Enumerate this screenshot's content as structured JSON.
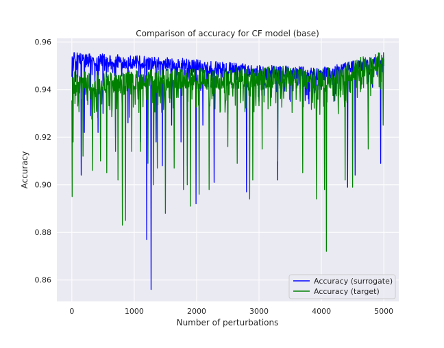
{
  "chart_data": {
    "type": "line",
    "title": "Comparison of accuracy for CF model (base)",
    "xlabel": "Number of perturbations",
    "ylabel": "Accuracy",
    "xlim": [
      -240,
      5240
    ],
    "ylim": [
      0.851,
      0.9615
    ],
    "xticks": [
      0,
      1000,
      2000,
      3000,
      4000,
      5000
    ],
    "xtick_labels": [
      "0",
      "1000",
      "2000",
      "3000",
      "4000",
      "5000"
    ],
    "yticks": [
      0.86,
      0.88,
      0.9,
      0.92,
      0.94,
      0.96
    ],
    "ytick_labels": [
      "0.86",
      "0.88",
      "0.90",
      "0.92",
      "0.94",
      "0.96"
    ],
    "grid": true,
    "legend_position": "lower-right",
    "series": [
      {
        "name": "Accuracy (surrogate)",
        "color": "#0000ff",
        "trend": [
          [
            0,
            0.953
          ],
          [
            1000,
            0.9515
          ],
          [
            2000,
            0.95
          ],
          [
            3000,
            0.9475
          ],
          [
            3600,
            0.947
          ],
          [
            4000,
            0.9465
          ],
          [
            4200,
            0.9475
          ],
          [
            4600,
            0.95
          ],
          [
            5000,
            0.952
          ]
        ],
        "spikes": [
          [
            10,
            0.935
          ],
          [
            150,
            0.904
          ],
          [
            200,
            0.922
          ],
          [
            300,
            0.929
          ],
          [
            420,
            0.922
          ],
          [
            500,
            0.93
          ],
          [
            700,
            0.92
          ],
          [
            900,
            0.926
          ],
          [
            1100,
            0.918
          ],
          [
            1200,
            0.877
          ],
          [
            1270,
            0.856
          ],
          [
            1350,
            0.918
          ],
          [
            1450,
            0.908
          ],
          [
            1600,
            0.925
          ],
          [
            1750,
            0.918
          ],
          [
            1850,
            0.908
          ],
          [
            1990,
            0.892
          ],
          [
            2100,
            0.925
          ],
          [
            2280,
            0.901
          ],
          [
            2500,
            0.93
          ],
          [
            2800,
            0.897
          ],
          [
            3000,
            0.935
          ],
          [
            3300,
            0.902
          ],
          [
            3500,
            0.935
          ],
          [
            3800,
            0.934
          ],
          [
            4000,
            0.94
          ],
          [
            4200,
            0.935
          ],
          [
            4420,
            0.899
          ],
          [
            4540,
            0.904
          ],
          [
            4750,
            0.93
          ],
          [
            4950,
            0.909
          ]
        ]
      },
      {
        "name": "Accuracy (target)",
        "color": "#008000",
        "trend": [
          [
            0,
            0.943
          ],
          [
            500,
            0.943
          ],
          [
            1000,
            0.9435
          ],
          [
            2000,
            0.9445
          ],
          [
            3000,
            0.945
          ],
          [
            3500,
            0.9455
          ],
          [
            4000,
            0.944
          ],
          [
            4300,
            0.946
          ],
          [
            4600,
            0.949
          ],
          [
            5000,
            0.952
          ]
        ],
        "spikes": [
          [
            5,
            0.895
          ],
          [
            20,
            0.918
          ],
          [
            180,
            0.912
          ],
          [
            330,
            0.906
          ],
          [
            460,
            0.91
          ],
          [
            560,
            0.905
          ],
          [
            700,
            0.914
          ],
          [
            740,
            0.902
          ],
          [
            810,
            0.883
          ],
          [
            860,
            0.885
          ],
          [
            960,
            0.914
          ],
          [
            1100,
            0.914
          ],
          [
            1220,
            0.909
          ],
          [
            1310,
            0.9
          ],
          [
            1370,
            0.907
          ],
          [
            1500,
            0.888
          ],
          [
            1640,
            0.907
          ],
          [
            1790,
            0.898
          ],
          [
            1850,
            0.9
          ],
          [
            1900,
            0.891
          ],
          [
            2040,
            0.896
          ],
          [
            2200,
            0.898
          ],
          [
            2500,
            0.916
          ],
          [
            2650,
            0.909
          ],
          [
            2850,
            0.894
          ],
          [
            2900,
            0.902
          ],
          [
            3050,
            0.915
          ],
          [
            3300,
            0.91
          ],
          [
            3700,
            0.905
          ],
          [
            3920,
            0.894
          ],
          [
            4050,
            0.898
          ],
          [
            4080,
            0.872
          ],
          [
            4380,
            0.902
          ],
          [
            4500,
            0.899
          ],
          [
            4750,
            0.915
          ],
          [
            4990,
            0.925
          ]
        ]
      }
    ]
  }
}
